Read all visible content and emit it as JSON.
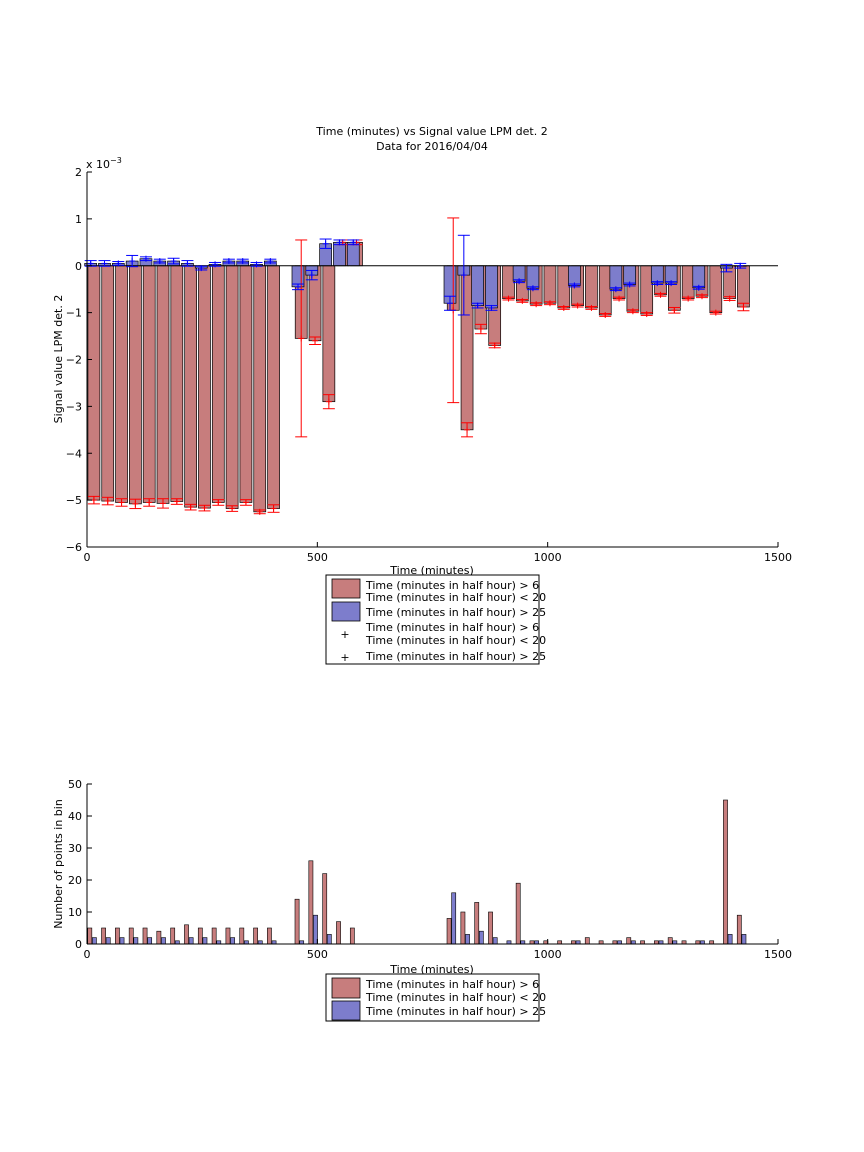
{
  "colors": {
    "red_fill": "#c77d7d",
    "blue_fill": "#7d7dcc",
    "red_marker": "#ff0000",
    "blue_marker": "#0000ff",
    "axes": "#000000"
  },
  "chart_data": [
    {
      "type": "bar",
      "title": "Time (minutes) vs Signal value LPM det. 2",
      "subtitle": "Data for 2016/04/04",
      "xlabel": "Time (minutes)",
      "ylabel": "Signal value LPM det. 2",
      "exponent_label": "x 10",
      "exponent_power": "−3",
      "xlim": [
        0,
        1500
      ],
      "ylim": [
        -6,
        2
      ],
      "xticks": [
        0,
        500,
        1000,
        1500
      ],
      "yticks": [
        -6,
        -5,
        -4,
        -3,
        -2,
        -1,
        0,
        1,
        2
      ],
      "legend_position": "below",
      "legend": [
        "Time (minutes in half hour) > 6",
        "Time (minutes in half hour) < 20",
        "Time (minutes in half hour) > 25",
        "Time (minutes in half hour) > 6",
        "Time (minutes in half hour) < 20",
        "Time (minutes in half hour) > 25"
      ],
      "series": [
        {
          "name": "Time (minutes in half hour) > 6 / < 20",
          "x": [
            15,
            45,
            75,
            105,
            135,
            165,
            195,
            225,
            255,
            285,
            315,
            345,
            375,
            405,
            465,
            495,
            525,
            555,
            585,
            795,
            825,
            855,
            885,
            915,
            945,
            975,
            1005,
            1035,
            1065,
            1095,
            1125,
            1155,
            1185,
            1215,
            1245,
            1275,
            1305,
            1335,
            1365,
            1395,
            1425
          ],
          "values": [
            -5.0,
            -5.02,
            -5.05,
            -5.08,
            -5.05,
            -5.07,
            -5.03,
            -5.15,
            -5.17,
            -5.05,
            -5.18,
            -5.05,
            -5.25,
            -5.18,
            -1.55,
            -1.6,
            -2.9,
            0.5,
            0.5,
            -0.95,
            -3.5,
            -1.35,
            -1.7,
            -0.7,
            -0.75,
            -0.82,
            -0.8,
            -0.9,
            -0.85,
            -0.9,
            -1.05,
            -0.7,
            -0.97,
            -1.03,
            -0.62,
            -0.95,
            -0.7,
            -0.65,
            -1.0,
            -0.7,
            -0.88
          ],
          "errors": [
            0.08,
            0.08,
            0.08,
            0.1,
            0.08,
            0.1,
            0.06,
            0.06,
            0.06,
            0.06,
            0.06,
            0.06,
            0.04,
            0.08,
            2.1,
            0.08,
            0.15,
            0.05,
            0.05,
            1.97,
            0.15,
            0.1,
            0.05,
            0.03,
            0.03,
            0.03,
            0.03,
            0.03,
            0.03,
            0.03,
            0.03,
            0.03,
            0.03,
            0.03,
            0.03,
            0.06,
            0.03,
            0.03,
            0.03,
            0.04,
            0.08
          ]
        },
        {
          "name": "Time (minutes in half hour) > 25",
          "x": [
            8,
            38,
            68,
            98,
            128,
            158,
            188,
            218,
            248,
            278,
            308,
            338,
            368,
            398,
            458,
            488,
            518,
            548,
            578,
            788,
            818,
            848,
            878,
            938,
            968,
            1058,
            1148,
            1178,
            1238,
            1268,
            1328,
            1388,
            1418
          ],
          "values": [
            0.05,
            0.05,
            0.05,
            0.1,
            0.15,
            0.1,
            0.1,
            0.05,
            -0.05,
            0.03,
            0.1,
            0.1,
            0.03,
            0.1,
            -0.45,
            -0.2,
            0.47,
            0.5,
            0.5,
            -0.8,
            -0.2,
            -0.85,
            -0.9,
            -0.33,
            -0.48,
            -0.42,
            -0.5,
            -0.4,
            -0.37,
            -0.37,
            -0.47,
            -0.05,
            0.0
          ],
          "errors": [
            0.06,
            0.06,
            0.04,
            0.12,
            0.04,
            0.04,
            0.06,
            0.06,
            0.04,
            0.04,
            0.04,
            0.04,
            0.04,
            0.04,
            0.06,
            0.1,
            0.1,
            0.05,
            0.05,
            0.15,
            0.85,
            0.05,
            0.05,
            0.03,
            0.03,
            0.03,
            0.03,
            0.03,
            0.03,
            0.03,
            0.03,
            0.08,
            0.05
          ]
        }
      ]
    },
    {
      "type": "bar",
      "xlabel": "Time (minutes)",
      "ylabel": "Number of points in bin",
      "xlim": [
        0,
        1500
      ],
      "ylim": [
        0,
        50
      ],
      "xticks": [
        0,
        500,
        1000,
        1500
      ],
      "yticks": [
        0,
        10,
        20,
        30,
        40,
        50
      ],
      "legend_position": "below",
      "legend": [
        "Time (minutes in half hour) > 6",
        "Time (minutes in half hour) < 20",
        "Time (minutes in half hour) > 25"
      ],
      "series": [
        {
          "name": "Time (minutes in half hour) > 6 / < 20",
          "x": [
            6,
            36,
            66,
            96,
            126,
            156,
            186,
            216,
            246,
            276,
            306,
            336,
            366,
            396,
            456,
            486,
            516,
            546,
            576,
            786,
            816,
            846,
            876,
            936,
            966,
            996,
            1026,
            1056,
            1086,
            1116,
            1146,
            1176,
            1206,
            1236,
            1266,
            1296,
            1326,
            1356,
            1386,
            1416
          ],
          "values": [
            5,
            5,
            5,
            5,
            5,
            4,
            5,
            6,
            5,
            5,
            5,
            5,
            5,
            5,
            14,
            26,
            22,
            7,
            5,
            8,
            10,
            13,
            10,
            19,
            1,
            1,
            1,
            1,
            2,
            1,
            1,
            2,
            1,
            1,
            2,
            1,
            1,
            1,
            45,
            9
          ]
        },
        {
          "name": "Time (minutes in half hour) > 25",
          "x": [
            16,
            46,
            76,
            106,
            136,
            166,
            196,
            226,
            256,
            286,
            316,
            346,
            376,
            406,
            466,
            496,
            526,
            796,
            826,
            856,
            886,
            916,
            946,
            976,
            1066,
            1156,
            1186,
            1246,
            1276,
            1336,
            1396,
            1426
          ],
          "values": [
            2,
            2,
            2,
            2,
            2,
            2,
            1,
            2,
            2,
            1,
            2,
            1,
            1,
            1,
            1,
            9,
            3,
            16,
            3,
            4,
            2,
            1,
            1,
            1,
            1,
            1,
            1,
            1,
            1,
            1,
            3,
            3
          ]
        }
      ]
    }
  ]
}
